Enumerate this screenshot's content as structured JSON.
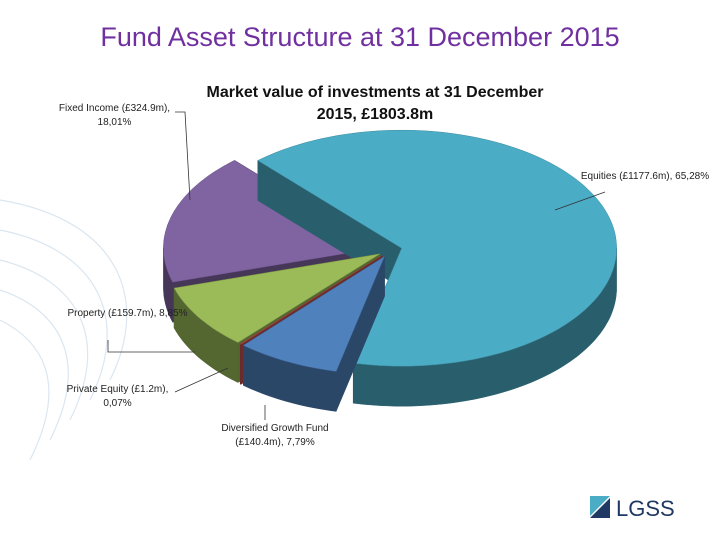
{
  "title": "Fund Asset Structure at 31 December 2015",
  "chart_data": {
    "type": "pie",
    "title": "Market value of investments at 31 December 2015, £1803.8m",
    "values": [
      65.28,
      7.79,
      0.07,
      8.85,
      18.01
    ],
    "value_labels": [
      "Equities (£1177.6m), 65,28%",
      "Diversified Growth Fund (£140.4m), 7,79%",
      "Private Equity (£1.2m), 0,07%",
      "Property (£159.7m), 8,85%",
      "Fixed Income (£324.9m), 18,01%"
    ],
    "colors": [
      "#4bacc6",
      "#4f81bd",
      "#c0504d",
      "#9bbb59",
      "#8064a2"
    ]
  },
  "logo": "LGSS"
}
